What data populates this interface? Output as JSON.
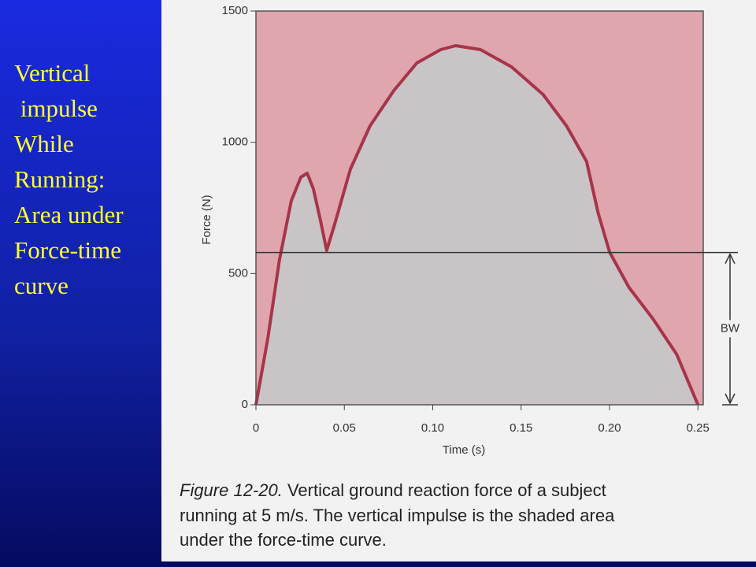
{
  "slide": {
    "lines": [
      "Vertical",
      " impulse",
      "While",
      "Running:",
      "Area under",
      "Force-time",
      "curve"
    ]
  },
  "chart_data": {
    "type": "area",
    "x_label": "Time (s)",
    "y_label": "Force (N)",
    "x": [
      0,
      0.0067,
      0.0133,
      0.02,
      0.0254,
      0.029,
      0.0325,
      0.0365,
      0.04,
      0.0445,
      0.0534,
      0.0645,
      0.078,
      0.091,
      0.1045,
      0.113,
      0.127,
      0.1446,
      0.1624,
      0.1757,
      0.187,
      0.1935,
      0.2,
      0.211,
      0.2246,
      0.238,
      0.25
    ],
    "values": [
      0,
      252,
      552,
      777,
      867,
      882,
      822,
      702,
      588,
      687,
      897,
      1062,
      1197,
      1302,
      1353,
      1368,
      1353,
      1287,
      1182,
      1062,
      927,
      732,
      582,
      447,
      327,
      192,
      0
    ],
    "color": "#a8344a",
    "fill_color": "#c9c5c6",
    "background_color": "#dfa6ae",
    "xlim": [
      0,
      0.253
    ],
    "ylim": [
      0,
      1500
    ],
    "xticks": [
      0,
      0.05,
      {
        "value": 0.1,
        "label": "0.10"
      },
      0.15,
      {
        "value": 0.2,
        "label": "0.20"
      },
      0.25
    ],
    "yticks": [
      0,
      500,
      1000,
      1500
    ],
    "annotations": [
      {
        "label": "BW",
        "value": 580
      }
    ],
    "caption_label": "Figure 12-20.",
    "caption_lines": [
      " Vertical ground reaction force of a subject",
      "running at 5 m/s. The vertical impulse is the shaded area",
      "under the force-time curve."
    ]
  }
}
